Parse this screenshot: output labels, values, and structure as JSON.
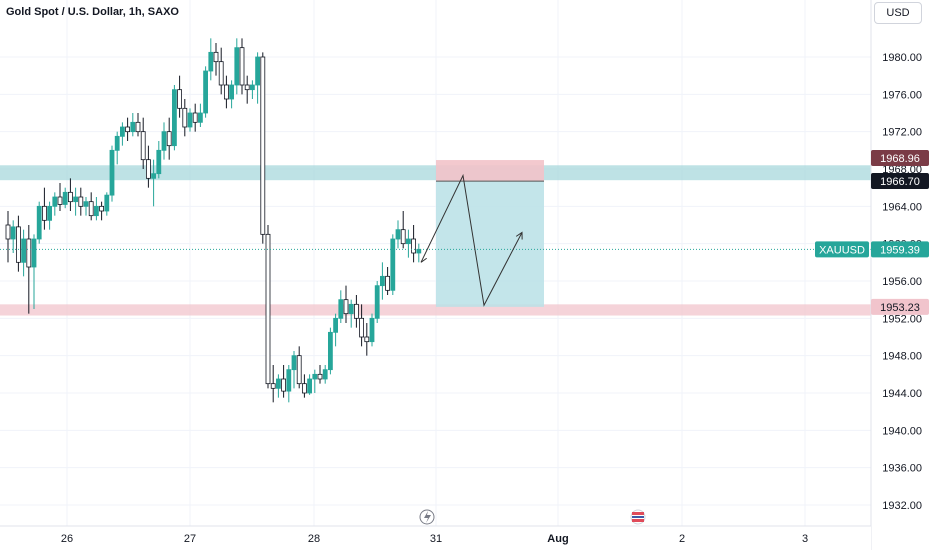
{
  "header": {
    "title": "Gold Spot / U.S. Dollar, 1h, SAXO",
    "currency_button": "USD"
  },
  "colors": {
    "up": "#26a69a",
    "down": "#131722",
    "resistance_zone": "#a8d8dc",
    "support_zone": "#f1c4cc",
    "target_zone": "#b8e0e6",
    "stop_zone": "#f2c3c9",
    "price_line": "#26a69a"
  },
  "chart_data": {
    "type": "candlestick",
    "title": "Gold Spot / U.S. Dollar, 1h, SAXO",
    "symbol": "XAUUSD",
    "last_price": 1959.39,
    "y_axis": {
      "ticks": [
        "1980.00",
        "1976.00",
        "1972.00",
        "1968.00",
        "1964.00",
        "1960.00",
        "1956.00",
        "1952.00",
        "1948.00",
        "1944.00",
        "1940.00",
        "1936.00",
        "1932.00"
      ],
      "ylim": [
        1930.0,
        1985.0
      ]
    },
    "x_axis": {
      "ticks": [
        "26",
        "27",
        "28",
        "31",
        "Aug",
        "2",
        "3"
      ]
    },
    "price_labels": [
      {
        "text": "1968.96",
        "value": 1968.96,
        "style": "stop"
      },
      {
        "text": "1966.70",
        "value": 1966.7,
        "style": "entry"
      },
      {
        "text": "1959.39",
        "value": 1959.39,
        "style": "last",
        "symbol": "XAUUSD"
      },
      {
        "text": "1953.23",
        "value": 1953.23,
        "style": "target"
      }
    ],
    "zones": [
      {
        "name": "resistance",
        "from": 1966.8,
        "to": 1968.4
      },
      {
        "name": "support",
        "from": 1952.3,
        "to": 1953.5
      }
    ],
    "position_tool": {
      "entry": 1966.7,
      "stop": 1968.96,
      "target": 1953.23
    },
    "forecast_path": [
      {
        "bar": 89,
        "price": 1958.0
      },
      {
        "bar": 93,
        "price": 1967.3
      },
      {
        "bar": 101,
        "price": 1953.4
      },
      {
        "bar": 107,
        "price": 1961.2
      }
    ],
    "candles": [
      [
        1962.0,
        1963.5,
        1958.0,
        1960.5
      ],
      [
        1960.5,
        1962.5,
        1959.0,
        1961.8
      ],
      [
        1961.8,
        1963.0,
        1957.0,
        1958.0
      ],
      [
        1958.0,
        1961.5,
        1956.5,
        1960.5
      ],
      [
        1960.5,
        1962.0,
        1952.5,
        1957.5
      ],
      [
        1957.5,
        1961.0,
        1953.0,
        1960.5
      ],
      [
        1960.5,
        1964.5,
        1960.0,
        1964.0
      ],
      [
        1964.0,
        1966.0,
        1961.5,
        1962.5
      ],
      [
        1962.5,
        1964.5,
        1961.5,
        1964.0
      ],
      [
        1964.0,
        1965.5,
        1963.0,
        1965.0
      ],
      [
        1965.0,
        1966.5,
        1963.5,
        1964.2
      ],
      [
        1964.2,
        1966.0,
        1963.8,
        1965.5
      ],
      [
        1965.5,
        1967.0,
        1963.5,
        1964.5
      ],
      [
        1964.5,
        1966.0,
        1963.0,
        1965.0
      ],
      [
        1965.0,
        1966.0,
        1963.0,
        1964.0
      ],
      [
        1964.0,
        1965.0,
        1963.0,
        1964.5
      ],
      [
        1964.5,
        1965.5,
        1962.5,
        1963.0
      ],
      [
        1963.0,
        1965.0,
        1962.5,
        1964.0
      ],
      [
        1964.0,
        1964.5,
        1962.5,
        1963.5
      ],
      [
        1963.5,
        1965.5,
        1963.0,
        1965.2
      ],
      [
        1965.2,
        1970.5,
        1964.5,
        1970.0
      ],
      [
        1970.0,
        1972.0,
        1968.5,
        1971.5
      ],
      [
        1971.5,
        1973.0,
        1970.5,
        1972.5
      ],
      [
        1972.5,
        1973.5,
        1971.0,
        1972.0
      ],
      [
        1972.0,
        1974.0,
        1971.5,
        1973.0
      ],
      [
        1973.0,
        1974.0,
        1971.5,
        1972.0
      ],
      [
        1972.0,
        1973.5,
        1968.0,
        1969.0
      ],
      [
        1969.0,
        1970.5,
        1966.0,
        1967.0
      ],
      [
        1967.0,
        1969.0,
        1964.0,
        1967.5
      ],
      [
        1967.5,
        1971.0,
        1967.0,
        1970.0
      ],
      [
        1970.0,
        1973.0,
        1969.0,
        1972.0
      ],
      [
        1972.0,
        1973.5,
        1969.0,
        1970.5
      ],
      [
        1970.5,
        1977.0,
        1970.0,
        1976.5
      ],
      [
        1976.5,
        1978.0,
        1973.5,
        1974.5
      ],
      [
        1974.5,
        1975.5,
        1971.5,
        1972.5
      ],
      [
        1972.5,
        1974.5,
        1972.0,
        1974.0
      ],
      [
        1974.0,
        1975.0,
        1972.0,
        1973.0
      ],
      [
        1973.0,
        1975.0,
        1972.5,
        1974.0
      ],
      [
        1974.0,
        1979.0,
        1973.5,
        1978.5
      ],
      [
        1978.5,
        1982.0,
        1977.5,
        1980.5
      ],
      [
        1980.5,
        1981.5,
        1978.0,
        1979.5
      ],
      [
        1979.5,
        1981.0,
        1976.0,
        1977.0
      ],
      [
        1977.0,
        1978.0,
        1974.5,
        1975.5
      ],
      [
        1975.5,
        1977.5,
        1974.5,
        1977.0
      ],
      [
        1977.0,
        1982.0,
        1976.0,
        1981.0
      ],
      [
        1981.0,
        1982.0,
        1976.0,
        1977.0
      ],
      [
        1977.0,
        1978.0,
        1975.0,
        1976.5
      ],
      [
        1976.5,
        1977.5,
        1975.5,
        1977.0
      ],
      [
        1977.0,
        1980.5,
        1975.0,
        1980.0
      ],
      [
        1980.0,
        1980.5,
        1960.0,
        1961.0
      ],
      [
        1961.0,
        1962.0,
        1944.5,
        1945.0
      ],
      [
        1945.0,
        1947.0,
        1943.0,
        1944.5
      ],
      [
        1944.5,
        1946.0,
        1943.5,
        1945.5
      ],
      [
        1945.5,
        1947.0,
        1943.5,
        1944.2
      ],
      [
        1944.2,
        1947.0,
        1943.0,
        1946.5
      ],
      [
        1946.5,
        1948.5,
        1944.5,
        1948.0
      ],
      [
        1948.0,
        1949.0,
        1944.5,
        1945.0
      ],
      [
        1945.0,
        1946.0,
        1943.5,
        1944.0
      ],
      [
        1944.0,
        1946.0,
        1943.8,
        1945.5
      ],
      [
        1945.5,
        1946.5,
        1944.0,
        1946.0
      ],
      [
        1946.0,
        1947.0,
        1945.0,
        1945.5
      ],
      [
        1945.5,
        1947.0,
        1945.0,
        1946.5
      ],
      [
        1946.5,
        1951.0,
        1946.0,
        1950.5
      ],
      [
        1950.5,
        1952.5,
        1949.0,
        1952.0
      ],
      [
        1952.0,
        1955.0,
        1951.5,
        1954.0
      ],
      [
        1954.0,
        1955.5,
        1951.5,
        1952.5
      ],
      [
        1952.5,
        1954.0,
        1951.0,
        1953.5
      ],
      [
        1953.5,
        1954.5,
        1951.0,
        1952.0
      ],
      [
        1952.0,
        1953.5,
        1949.0,
        1950.0
      ],
      [
        1950.0,
        1951.5,
        1948.0,
        1949.5
      ],
      [
        1949.5,
        1952.5,
        1949.0,
        1952.0
      ],
      [
        1952.0,
        1956.0,
        1951.5,
        1955.5
      ],
      [
        1955.5,
        1958.0,
        1954.0,
        1956.5
      ],
      [
        1956.5,
        1957.5,
        1954.5,
        1955.0
      ],
      [
        1955.0,
        1961.0,
        1954.5,
        1960.5
      ],
      [
        1960.5,
        1962.5,
        1959.5,
        1961.5
      ],
      [
        1961.5,
        1963.5,
        1959.5,
        1960.0
      ],
      [
        1960.0,
        1961.5,
        1958.5,
        1960.5
      ],
      [
        1960.5,
        1962.0,
        1958.0,
        1959.0
      ],
      [
        1959.0,
        1960.0,
        1958.0,
        1959.39
      ]
    ]
  }
}
